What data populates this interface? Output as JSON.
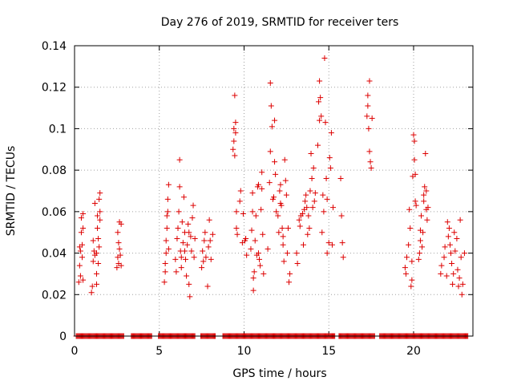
{
  "chart_data": {
    "type": "scatter",
    "title": "Day 276 of 2019, SRMTID for receiver ters",
    "xlabel": "GPS time / hours",
    "ylabel": "SRMTID / TECUs",
    "xlim": [
      0,
      23.5
    ],
    "ylim": [
      0,
      0.14
    ],
    "xticks": [
      0,
      5,
      10,
      15,
      20
    ],
    "xtick_labels": [
      "0",
      "5",
      "10",
      "15",
      "20"
    ],
    "yticks": [
      0,
      0.02,
      0.04,
      0.06,
      0.08,
      0.1,
      0.12,
      0.14
    ],
    "ytick_labels": [
      "0",
      "0.02",
      "0.04",
      "0.06",
      "0.08",
      "0.1",
      "0.12",
      "0.14"
    ],
    "grid": true,
    "marker": "+",
    "color": "#dd0000",
    "series": [
      {
        "name": "SRMTID",
        "points": [
          [
            0.25,
            0.026
          ],
          [
            0.3,
            0.034
          ],
          [
            0.3,
            0.043
          ],
          [
            0.35,
            0.029
          ],
          [
            0.35,
            0.041
          ],
          [
            0.4,
            0.05
          ],
          [
            0.4,
            0.057
          ],
          [
            0.45,
            0.038
          ],
          [
            0.45,
            0.044
          ],
          [
            0.5,
            0.027
          ],
          [
            0.5,
            0.052
          ],
          [
            0.5,
            0.059
          ],
          [
            1.0,
            0.021
          ],
          [
            1.05,
            0.024
          ],
          [
            1.1,
            0.036
          ],
          [
            1.1,
            0.046
          ],
          [
            1.15,
            0.041
          ],
          [
            1.2,
            0.039
          ],
          [
            1.2,
            0.064
          ],
          [
            1.3,
            0.03
          ],
          [
            1.3,
            0.025
          ],
          [
            1.3,
            0.04
          ],
          [
            1.35,
            0.052
          ],
          [
            1.35,
            0.058
          ],
          [
            1.4,
            0.035
          ],
          [
            1.4,
            0.047
          ],
          [
            1.45,
            0.043
          ],
          [
            1.45,
            0.066
          ],
          [
            1.5,
            0.069
          ],
          [
            1.5,
            0.06
          ],
          [
            1.5,
            0.056
          ],
          [
            2.5,
            0.033
          ],
          [
            2.55,
            0.038
          ],
          [
            2.55,
            0.05
          ],
          [
            2.6,
            0.035
          ],
          [
            2.6,
            0.045
          ],
          [
            2.65,
            0.055
          ],
          [
            2.65,
            0.042
          ],
          [
            2.7,
            0.039
          ],
          [
            2.75,
            0.034
          ],
          [
            2.75,
            0.054
          ],
          [
            5.3,
            0.026
          ],
          [
            5.35,
            0.031
          ],
          [
            5.35,
            0.035
          ],
          [
            5.4,
            0.04
          ],
          [
            5.4,
            0.046
          ],
          [
            5.45,
            0.052
          ],
          [
            5.45,
            0.058
          ],
          [
            5.5,
            0.06
          ],
          [
            5.5,
            0.066
          ],
          [
            5.55,
            0.073
          ],
          [
            5.55,
            0.042
          ],
          [
            5.95,
            0.037
          ],
          [
            6.0,
            0.031
          ],
          [
            6.05,
            0.047
          ],
          [
            6.1,
            0.052
          ],
          [
            6.15,
            0.06
          ],
          [
            6.2,
            0.072
          ],
          [
            6.2,
            0.085
          ],
          [
            6.25,
            0.041
          ],
          [
            6.3,
            0.038
          ],
          [
            6.3,
            0.033
          ],
          [
            6.35,
            0.055
          ],
          [
            6.4,
            0.045
          ],
          [
            6.45,
            0.067
          ],
          [
            6.5,
            0.05
          ],
          [
            6.5,
            0.041
          ],
          [
            6.55,
            0.037
          ],
          [
            6.6,
            0.029
          ],
          [
            6.65,
            0.044
          ],
          [
            6.7,
            0.054
          ],
          [
            6.75,
            0.025
          ],
          [
            6.75,
            0.05
          ],
          [
            6.8,
            0.019
          ],
          [
            6.85,
            0.048
          ],
          [
            6.9,
            0.041
          ],
          [
            6.95,
            0.057
          ],
          [
            7.0,
            0.063
          ],
          [
            7.05,
            0.038
          ],
          [
            7.1,
            0.047
          ],
          [
            7.5,
            0.033
          ],
          [
            7.55,
            0.041
          ],
          [
            7.6,
            0.036
          ],
          [
            7.65,
            0.046
          ],
          [
            7.7,
            0.05
          ],
          [
            7.75,
            0.038
          ],
          [
            7.85,
            0.024
          ],
          [
            7.9,
            0.043
          ],
          [
            7.95,
            0.056
          ],
          [
            8.0,
            0.046
          ],
          [
            8.05,
            0.037
          ],
          [
            8.15,
            0.049
          ],
          [
            9.35,
            0.09
          ],
          [
            9.4,
            0.1
          ],
          [
            9.4,
            0.094
          ],
          [
            9.45,
            0.087
          ],
          [
            9.45,
            0.116
          ],
          [
            9.5,
            0.103
          ],
          [
            9.5,
            0.098
          ],
          [
            9.55,
            0.06
          ],
          [
            9.55,
            0.052
          ],
          [
            9.6,
            0.049
          ],
          [
            9.75,
            0.065
          ],
          [
            9.8,
            0.07
          ],
          [
            9.9,
            0.045
          ],
          [
            9.95,
            0.059
          ],
          [
            10.05,
            0.046
          ],
          [
            10.1,
            0.047
          ],
          [
            10.15,
            0.039
          ],
          [
            10.4,
            0.042
          ],
          [
            10.45,
            0.051
          ],
          [
            10.5,
            0.069
          ],
          [
            10.5,
            0.06
          ],
          [
            10.55,
            0.028
          ],
          [
            10.55,
            0.022
          ],
          [
            10.6,
            0.031
          ],
          [
            10.65,
            0.046
          ],
          [
            10.7,
            0.058
          ],
          [
            10.75,
            0.039
          ],
          [
            10.8,
            0.072
          ],
          [
            10.85,
            0.073
          ],
          [
            10.85,
            0.04
          ],
          [
            10.9,
            0.037
          ],
          [
            10.95,
            0.034
          ],
          [
            11.0,
            0.061
          ],
          [
            11.05,
            0.071
          ],
          [
            11.05,
            0.079
          ],
          [
            11.1,
            0.049
          ],
          [
            11.15,
            0.03
          ],
          [
            11.4,
            0.042
          ],
          [
            11.5,
            0.074
          ],
          [
            11.55,
            0.089
          ],
          [
            11.55,
            0.122
          ],
          [
            11.6,
            0.111
          ],
          [
            11.65,
            0.101
          ],
          [
            11.7,
            0.066
          ],
          [
            11.75,
            0.067
          ],
          [
            11.8,
            0.084
          ],
          [
            11.8,
            0.104
          ],
          [
            11.85,
            0.078
          ],
          [
            11.9,
            0.06
          ],
          [
            12.0,
            0.058
          ],
          [
            12.05,
            0.05
          ],
          [
            12.1,
            0.07
          ],
          [
            12.15,
            0.073
          ],
          [
            12.15,
            0.064
          ],
          [
            12.2,
            0.063
          ],
          [
            12.25,
            0.052
          ],
          [
            12.3,
            0.048
          ],
          [
            12.3,
            0.044
          ],
          [
            12.35,
            0.036
          ],
          [
            12.4,
            0.085
          ],
          [
            12.45,
            0.075
          ],
          [
            12.5,
            0.068
          ],
          [
            12.55,
            0.04
          ],
          [
            12.6,
            0.052
          ],
          [
            12.65,
            0.026
          ],
          [
            12.7,
            0.03
          ],
          [
            13.1,
            0.04
          ],
          [
            13.15,
            0.035
          ],
          [
            13.25,
            0.056
          ],
          [
            13.3,
            0.053
          ],
          [
            13.35,
            0.058
          ],
          [
            13.45,
            0.059
          ],
          [
            13.5,
            0.044
          ],
          [
            13.55,
            0.061
          ],
          [
            13.6,
            0.065
          ],
          [
            13.65,
            0.068
          ],
          [
            13.7,
            0.062
          ],
          [
            13.75,
            0.049
          ],
          [
            13.8,
            0.058
          ],
          [
            13.85,
            0.052
          ],
          [
            13.9,
            0.07
          ],
          [
            13.95,
            0.088
          ],
          [
            14.0,
            0.076
          ],
          [
            14.05,
            0.062
          ],
          [
            14.1,
            0.081
          ],
          [
            14.15,
            0.065
          ],
          [
            14.2,
            0.069
          ],
          [
            14.35,
            0.092
          ],
          [
            14.4,
            0.113
          ],
          [
            14.45,
            0.123
          ],
          [
            14.45,
            0.104
          ],
          [
            14.5,
            0.115
          ],
          [
            14.55,
            0.106
          ],
          [
            14.6,
            0.05
          ],
          [
            14.65,
            0.068
          ],
          [
            14.7,
            0.06
          ],
          [
            14.75,
            0.134
          ],
          [
            14.8,
            0.103
          ],
          [
            14.85,
            0.076
          ],
          [
            14.9,
            0.066
          ],
          [
            14.9,
            0.04
          ],
          [
            15.0,
            0.045
          ],
          [
            15.05,
            0.086
          ],
          [
            15.1,
            0.081
          ],
          [
            15.15,
            0.098
          ],
          [
            15.2,
            0.044
          ],
          [
            15.25,
            0.062
          ],
          [
            15.7,
            0.076
          ],
          [
            15.75,
            0.058
          ],
          [
            15.8,
            0.045
          ],
          [
            15.85,
            0.038
          ],
          [
            17.25,
            0.106
          ],
          [
            17.3,
            0.116
          ],
          [
            17.3,
            0.111
          ],
          [
            17.35,
            0.1
          ],
          [
            17.4,
            0.089
          ],
          [
            17.4,
            0.123
          ],
          [
            17.45,
            0.084
          ],
          [
            17.5,
            0.081
          ],
          [
            17.55,
            0.105
          ],
          [
            19.5,
            0.033
          ],
          [
            19.55,
            0.03
          ],
          [
            19.6,
            0.038
          ],
          [
            19.7,
            0.044
          ],
          [
            19.75,
            0.061
          ],
          [
            19.8,
            0.052
          ],
          [
            19.85,
            0.024
          ],
          [
            19.9,
            0.036
          ],
          [
            19.9,
            0.027
          ],
          [
            19.95,
            0.077
          ],
          [
            20.0,
            0.097
          ],
          [
            20.05,
            0.085
          ],
          [
            20.05,
            0.094
          ],
          [
            20.1,
            0.078
          ],
          [
            20.1,
            0.065
          ],
          [
            20.15,
            0.063
          ],
          [
            20.3,
            0.037
          ],
          [
            20.35,
            0.04
          ],
          [
            20.4,
            0.046
          ],
          [
            20.4,
            0.051
          ],
          [
            20.45,
            0.058
          ],
          [
            20.5,
            0.043
          ],
          [
            20.55,
            0.05
          ],
          [
            20.6,
            0.065
          ],
          [
            20.6,
            0.068
          ],
          [
            20.65,
            0.072
          ],
          [
            20.7,
            0.088
          ],
          [
            20.75,
            0.07
          ],
          [
            20.75,
            0.061
          ],
          [
            20.8,
            0.056
          ],
          [
            20.85,
            0.062
          ],
          [
            21.6,
            0.03
          ],
          [
            21.65,
            0.034
          ],
          [
            21.8,
            0.038
          ],
          [
            21.85,
            0.043
          ],
          [
            21.95,
            0.029
          ],
          [
            22.0,
            0.055
          ],
          [
            22.05,
            0.048
          ],
          [
            22.1,
            0.052
          ],
          [
            22.15,
            0.044
          ],
          [
            22.2,
            0.04
          ],
          [
            22.25,
            0.035
          ],
          [
            22.3,
            0.025
          ],
          [
            22.35,
            0.03
          ],
          [
            22.4,
            0.05
          ],
          [
            22.45,
            0.041
          ],
          [
            22.55,
            0.047
          ],
          [
            22.6,
            0.032
          ],
          [
            22.65,
            0.024
          ],
          [
            22.7,
            0.028
          ],
          [
            22.75,
            0.056
          ],
          [
            22.8,
            0.038
          ],
          [
            22.85,
            0.02
          ],
          [
            22.9,
            0.025
          ],
          [
            23.0,
            0.04
          ]
        ]
      },
      {
        "name": "SRMTID baseline (zero)",
        "x_range": [
          0.1,
          23.2
        ],
        "step": 0.05,
        "gaps": [
          [
            2.9,
            3.3
          ],
          [
            4.55,
            4.9
          ],
          [
            7.1,
            7.4
          ],
          [
            8.3,
            8.7
          ],
          [
            15.4,
            15.6
          ],
          [
            17.75,
            18.0
          ]
        ],
        "value": 0
      }
    ]
  }
}
